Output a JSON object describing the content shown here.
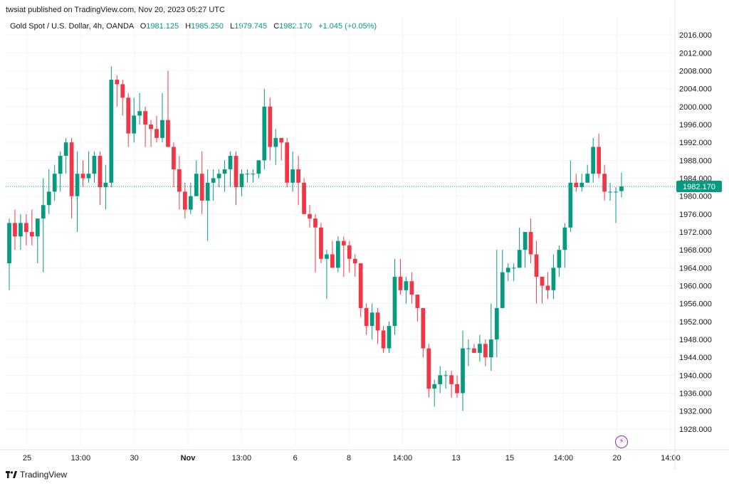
{
  "header": {
    "publisher": "twsiat published on TradingView.com, Nov 20, 2023 05:27 UTC",
    "symbol": "Gold Spot / U.S. Dollar, 4h, OANDA",
    "open_label": "O",
    "open": "1981.125",
    "high_label": "H",
    "high": "1985.250",
    "low_label": "L",
    "low": "1979.745",
    "close_label": "C",
    "close": "1982.170",
    "change": "+1.045 (+0.05%)"
  },
  "footer": {
    "brand": "TradingView"
  },
  "colors": {
    "up": "#089981",
    "down": "#f23645",
    "grid": "#f0f3fa",
    "price_line": "#089981",
    "axis_text": "#131722"
  },
  "chart_data": {
    "type": "candlestick",
    "title": "Gold Spot / U.S. Dollar, 4h, OANDA",
    "ylim": [
      1924,
      2020
    ],
    "y_ticks": [
      "2016.000",
      "2012.000",
      "2008.000",
      "2004.000",
      "2000.000",
      "1996.000",
      "1992.000",
      "1988.000",
      "1984.000",
      "1980.000",
      "1976.000",
      "1972.000",
      "1968.000",
      "1964.000",
      "1960.000",
      "1956.000",
      "1952.000",
      "1948.000",
      "1944.000",
      "1940.000",
      "1936.000",
      "1932.000",
      "1928.000"
    ],
    "x_ticks": [
      "25",
      "13:00",
      "30",
      "Nov",
      "13:00",
      "6",
      "8",
      "14:00",
      "13",
      "15",
      "14:00",
      "20",
      "14:00"
    ],
    "last_price": "1982.170",
    "last_price_value": 1982.17,
    "grid": true,
    "candles": [
      {
        "o": 1965,
        "h": 1975,
        "l": 1959,
        "c": 1974
      },
      {
        "o": 1974,
        "h": 1977,
        "l": 1968,
        "c": 1971
      },
      {
        "o": 1971,
        "h": 1976,
        "l": 1968,
        "c": 1974
      },
      {
        "o": 1974,
        "h": 1976,
        "l": 1969,
        "c": 1972
      },
      {
        "o": 1972,
        "h": 1977,
        "l": 1969,
        "c": 1971
      },
      {
        "o": 1971,
        "h": 1975,
        "l": 1965,
        "c": 1975
      },
      {
        "o": 1975,
        "h": 1984,
        "l": 1963,
        "c": 1978
      },
      {
        "o": 1978,
        "h": 1986,
        "l": 1976,
        "c": 1981
      },
      {
        "o": 1981,
        "h": 1987,
        "l": 1979,
        "c": 1985
      },
      {
        "o": 1985,
        "h": 1990,
        "l": 1981,
        "c": 1989
      },
      {
        "o": 1989,
        "h": 1993,
        "l": 1985,
        "c": 1992
      },
      {
        "o": 1992,
        "h": 1993,
        "l": 1975,
        "c": 1980
      },
      {
        "o": 1980,
        "h": 1990,
        "l": 1972,
        "c": 1985
      },
      {
        "o": 1985,
        "h": 1988,
        "l": 1982,
        "c": 1984
      },
      {
        "o": 1984,
        "h": 1990,
        "l": 1983,
        "c": 1985
      },
      {
        "o": 1985,
        "h": 1990,
        "l": 1983,
        "c": 1989
      },
      {
        "o": 1989,
        "h": 1990,
        "l": 1978,
        "c": 1982
      },
      {
        "o": 1982,
        "h": 1987,
        "l": 1977,
        "c": 1983
      },
      {
        "o": 1983,
        "h": 2009,
        "l": 1982,
        "c": 2006
      },
      {
        "o": 2006,
        "h": 2007,
        "l": 2000,
        "c": 2005
      },
      {
        "o": 2005,
        "h": 2006,
        "l": 1998,
        "c": 2002
      },
      {
        "o": 2002,
        "h": 2003,
        "l": 1991,
        "c": 1994
      },
      {
        "o": 1994,
        "h": 2002,
        "l": 1992,
        "c": 1998
      },
      {
        "o": 1998,
        "h": 2003,
        "l": 1996,
        "c": 1999
      },
      {
        "o": 1999,
        "h": 2000,
        "l": 1991,
        "c": 1996
      },
      {
        "o": 1996,
        "h": 1997,
        "l": 1991,
        "c": 1995
      },
      {
        "o": 1995,
        "h": 1998,
        "l": 1992,
        "c": 1993
      },
      {
        "o": 1993,
        "h": 2003,
        "l": 1992,
        "c": 1997
      },
      {
        "o": 1997,
        "h": 2008,
        "l": 1991,
        "c": 1991
      },
      {
        "o": 1991,
        "h": 1992,
        "l": 1982,
        "c": 1986
      },
      {
        "o": 1986,
        "h": 1989,
        "l": 1977,
        "c": 1981
      },
      {
        "o": 1981,
        "h": 1983,
        "l": 1975,
        "c": 1977
      },
      {
        "o": 1977,
        "h": 1983,
        "l": 1976,
        "c": 1980
      },
      {
        "o": 1980,
        "h": 1988,
        "l": 1980,
        "c": 1985
      },
      {
        "o": 1985,
        "h": 1990,
        "l": 1976,
        "c": 1979
      },
      {
        "o": 1979,
        "h": 1986,
        "l": 1970,
        "c": 1983
      },
      {
        "o": 1983,
        "h": 1986,
        "l": 1979,
        "c": 1984
      },
      {
        "o": 1984,
        "h": 1986,
        "l": 1982,
        "c": 1985
      },
      {
        "o": 1985,
        "h": 1988,
        "l": 1981,
        "c": 1986
      },
      {
        "o": 1986,
        "h": 1990,
        "l": 1982,
        "c": 1989
      },
      {
        "o": 1989,
        "h": 1990,
        "l": 1978,
        "c": 1982
      },
      {
        "o": 1982,
        "h": 1986,
        "l": 1980,
        "c": 1985
      },
      {
        "o": 1985,
        "h": 1986,
        "l": 1983,
        "c": 1985
      },
      {
        "o": 1985,
        "h": 1986,
        "l": 1983,
        "c": 1985
      },
      {
        "o": 1985,
        "h": 1988,
        "l": 1984,
        "c": 1988
      },
      {
        "o": 1988,
        "h": 2004,
        "l": 1986,
        "c": 2000
      },
      {
        "o": 2000,
        "h": 2002,
        "l": 1988,
        "c": 1991
      },
      {
        "o": 1991,
        "h": 1995,
        "l": 1987,
        "c": 1993
      },
      {
        "o": 1993,
        "h": 1993,
        "l": 1988,
        "c": 1992
      },
      {
        "o": 1992,
        "h": 1993,
        "l": 1982,
        "c": 1983
      },
      {
        "o": 1983,
        "h": 1990,
        "l": 1981,
        "c": 1986
      },
      {
        "o": 1986,
        "h": 1989,
        "l": 1978,
        "c": 1983
      },
      {
        "o": 1983,
        "h": 1984,
        "l": 1976,
        "c": 1976
      },
      {
        "o": 1976,
        "h": 1978,
        "l": 1973,
        "c": 1975
      },
      {
        "o": 1975,
        "h": 1976,
        "l": 1963,
        "c": 1973
      },
      {
        "o": 1973,
        "h": 1974,
        "l": 1965,
        "c": 1966
      },
      {
        "o": 1966,
        "h": 1968,
        "l": 1957,
        "c": 1967
      },
      {
        "o": 1967,
        "h": 1970,
        "l": 1964,
        "c": 1964
      },
      {
        "o": 1964,
        "h": 1971,
        "l": 1963,
        "c": 1970
      },
      {
        "o": 1970,
        "h": 1971,
        "l": 1962,
        "c": 1969
      },
      {
        "o": 1969,
        "h": 1970,
        "l": 1963,
        "c": 1966
      },
      {
        "o": 1966,
        "h": 1967,
        "l": 1962,
        "c": 1965
      },
      {
        "o": 1965,
        "h": 1965,
        "l": 1953,
        "c": 1955
      },
      {
        "o": 1955,
        "h": 1956,
        "l": 1949,
        "c": 1951
      },
      {
        "o": 1951,
        "h": 1956,
        "l": 1948,
        "c": 1954
      },
      {
        "o": 1954,
        "h": 1955,
        "l": 1947,
        "c": 1950
      },
      {
        "o": 1950,
        "h": 1951,
        "l": 1945,
        "c": 1946
      },
      {
        "o": 1946,
        "h": 1952,
        "l": 1945,
        "c": 1951
      },
      {
        "o": 1951,
        "h": 1966,
        "l": 1949,
        "c": 1962
      },
      {
        "o": 1962,
        "h": 1966,
        "l": 1958,
        "c": 1959
      },
      {
        "o": 1959,
        "h": 1962,
        "l": 1956,
        "c": 1961
      },
      {
        "o": 1961,
        "h": 1963,
        "l": 1956,
        "c": 1958
      },
      {
        "o": 1958,
        "h": 1958,
        "l": 1952,
        "c": 1955
      },
      {
        "o": 1955,
        "h": 1955,
        "l": 1944,
        "c": 1946
      },
      {
        "o": 1946,
        "h": 1947,
        "l": 1935,
        "c": 1937
      },
      {
        "o": 1937,
        "h": 1939,
        "l": 1933,
        "c": 1938
      },
      {
        "o": 1938,
        "h": 1942,
        "l": 1936,
        "c": 1940
      },
      {
        "o": 1940,
        "h": 1941,
        "l": 1937,
        "c": 1940
      },
      {
        "o": 1940,
        "h": 1941,
        "l": 1935,
        "c": 1938
      },
      {
        "o": 1938,
        "h": 1940,
        "l": 1935,
        "c": 1936
      },
      {
        "o": 1936,
        "h": 1950,
        "l": 1932,
        "c": 1946
      },
      {
        "o": 1946,
        "h": 1948,
        "l": 1942,
        "c": 1946
      },
      {
        "o": 1946,
        "h": 1947,
        "l": 1945,
        "c": 1945
      },
      {
        "o": 1945,
        "h": 1949,
        "l": 1943,
        "c": 1947
      },
      {
        "o": 1947,
        "h": 1948,
        "l": 1942,
        "c": 1944
      },
      {
        "o": 1944,
        "h": 1956,
        "l": 1941,
        "c": 1948
      },
      {
        "o": 1948,
        "h": 1968,
        "l": 1944,
        "c": 1955
      },
      {
        "o": 1955,
        "h": 1968,
        "l": 1955,
        "c": 1963
      },
      {
        "o": 1963,
        "h": 1965,
        "l": 1961,
        "c": 1964
      },
      {
        "o": 1964,
        "h": 1965,
        "l": 1961,
        "c": 1964
      },
      {
        "o": 1964,
        "h": 1973,
        "l": 1964,
        "c": 1968
      },
      {
        "o": 1968,
        "h": 1972,
        "l": 1964,
        "c": 1972
      },
      {
        "o": 1972,
        "h": 1975,
        "l": 1965,
        "c": 1967
      },
      {
        "o": 1967,
        "h": 1970,
        "l": 1956,
        "c": 1962
      },
      {
        "o": 1962,
        "h": 1962,
        "l": 1956,
        "c": 1960
      },
      {
        "o": 1960,
        "h": 1963,
        "l": 1957,
        "c": 1959
      },
      {
        "o": 1959,
        "h": 1967,
        "l": 1957,
        "c": 1964
      },
      {
        "o": 1964,
        "h": 1969,
        "l": 1962,
        "c": 1968
      },
      {
        "o": 1968,
        "h": 1974,
        "l": 1964,
        "c": 1973
      },
      {
        "o": 1973,
        "h": 1988,
        "l": 1972,
        "c": 1983
      },
      {
        "o": 1983,
        "h": 1985,
        "l": 1981,
        "c": 1982
      },
      {
        "o": 1982,
        "h": 1985,
        "l": 1981,
        "c": 1983
      },
      {
        "o": 1983,
        "h": 1987,
        "l": 1983,
        "c": 1985
      },
      {
        "o": 1985,
        "h": 1993,
        "l": 1983,
        "c": 1991
      },
      {
        "o": 1991,
        "h": 1994,
        "l": 1984,
        "c": 1985
      },
      {
        "o": 1985,
        "h": 1987,
        "l": 1979,
        "c": 1981
      },
      {
        "o": 1981,
        "h": 1983,
        "l": 1979,
        "c": 1981
      },
      {
        "o": 1981,
        "h": 1982,
        "l": 1974,
        "c": 1981
      },
      {
        "o": 1981.125,
        "h": 1985.25,
        "l": 1979.745,
        "c": 1982.17
      }
    ]
  }
}
